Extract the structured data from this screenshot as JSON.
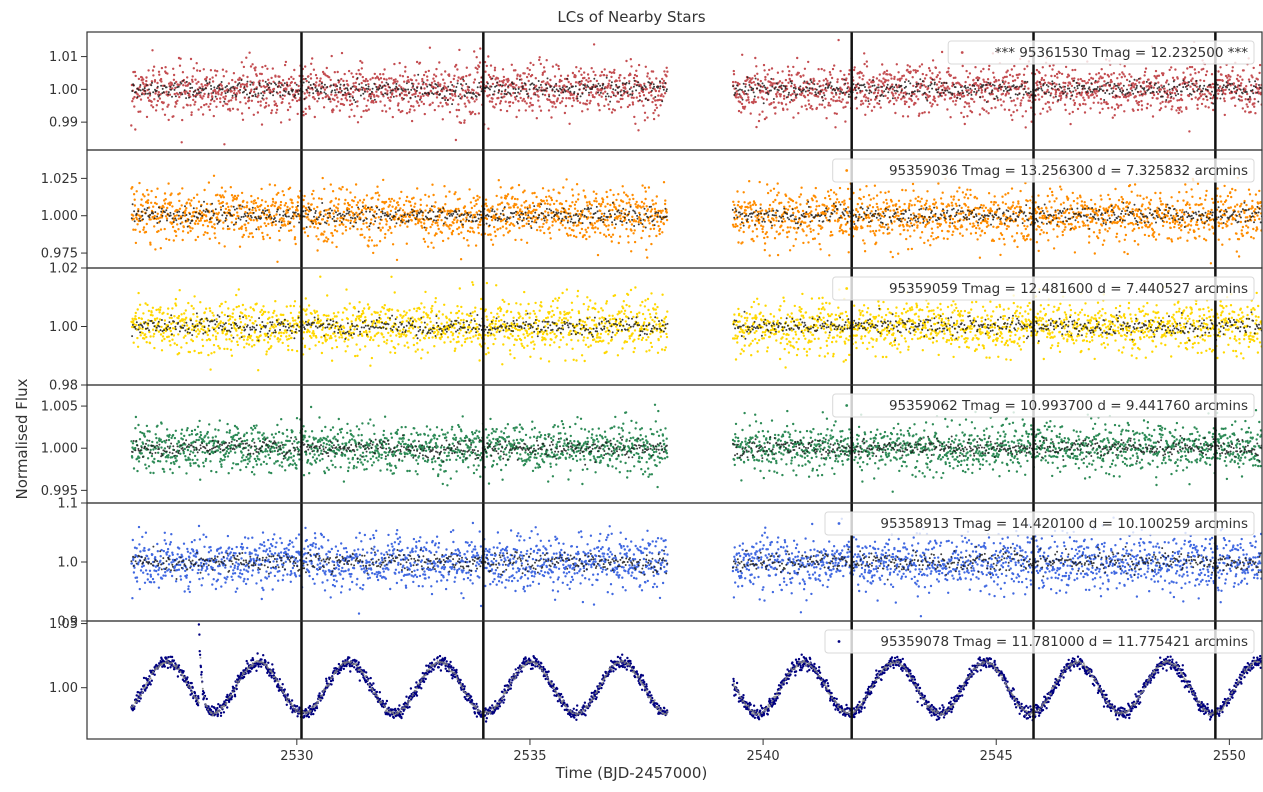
{
  "chart_data": {
    "type": "scatter",
    "title": "LCs of Nearby Stars",
    "xlabel": "Time (BJD-2457000)",
    "ylabel": "Normalised Flux",
    "xlim": [
      2525.5,
      2550.7
    ],
    "xticks": [
      2530,
      2535,
      2540,
      2545,
      2550
    ],
    "xtick_labels": [
      "2530",
      "2535",
      "2540",
      "2545",
      "2550"
    ],
    "data_segments": [
      [
        2526.45,
        2537.95
      ],
      [
        2539.35,
        2550.7
      ]
    ],
    "transit_lines": [
      2530.1,
      2534.0,
      2541.9,
      2545.8,
      2549.7
    ],
    "grid": false,
    "legend_location": "upper right",
    "panels": [
      {
        "legend": "*** 95361530  Tmag = 12.232500 ***",
        "color": "#c44e52",
        "ylim": [
          0.9815,
          1.0175
        ],
        "yticks": [
          0.99,
          1.0,
          1.01
        ],
        "ytick_labels": [
          "0.99",
          "1.00",
          "1.01"
        ],
        "baseline": 1.0,
        "scatter_std": 0.004,
        "variability": "none"
      },
      {
        "legend": "95359036  Tmag = 13.256300   d = 7.325832 arcmins",
        "color": "#ff8c00",
        "ylim": [
          0.965,
          1.044
        ],
        "yticks": [
          0.975,
          1.0,
          1.025
        ],
        "ytick_labels": [
          "0.975",
          "1.000",
          "1.025"
        ],
        "baseline": 1.0,
        "scatter_std": 0.009,
        "variability": "none"
      },
      {
        "legend": "95359059  Tmag = 12.481600   d = 7.440527 arcmins",
        "color": "#ffd700",
        "ylim": [
          0.98,
          1.02
        ],
        "yticks": [
          0.98,
          1.0,
          1.02
        ],
        "ytick_labels": [
          "0.98",
          "1.00",
          "1.02"
        ],
        "baseline": 1.0,
        "scatter_std": 0.0045,
        "variability": "none"
      },
      {
        "legend": "95359062  Tmag = 10.993700   d = 9.441760 arcmins",
        "color": "#2e8b57",
        "ylim": [
          0.9935,
          1.0075
        ],
        "yticks": [
          0.995,
          1.0,
          1.005
        ],
        "ytick_labels": [
          "0.995",
          "1.000",
          "1.005"
        ],
        "baseline": 1.0,
        "scatter_std": 0.0015,
        "variability": "none"
      },
      {
        "legend": "95358913  Tmag = 14.420100   d = 10.100259 arcmins",
        "color": "#4169e1",
        "ylim": [
          0.9,
          1.1
        ],
        "yticks": [
          0.9,
          1.0,
          1.1
        ],
        "ytick_labels": [
          "0.9",
          "1.0",
          "1.1"
        ],
        "baseline": 1.0,
        "scatter_std": 0.024,
        "variability": "none"
      },
      {
        "legend": "95359078  Tmag = 11.781000   d = 11.775421 arcmins",
        "color": "#000080",
        "ylim": [
          0.96,
          1.052
        ],
        "yticks": [
          1.0,
          1.05
        ],
        "ytick_labels": [
          "1.00",
          "1.05"
        ],
        "baseline": 1.0,
        "scatter_std": 0.0025,
        "variability": "sinusoid",
        "period_days": 1.95,
        "amplitude": 0.02,
        "flare_time": 2527.9,
        "flare_peak": 1.05
      }
    ]
  }
}
